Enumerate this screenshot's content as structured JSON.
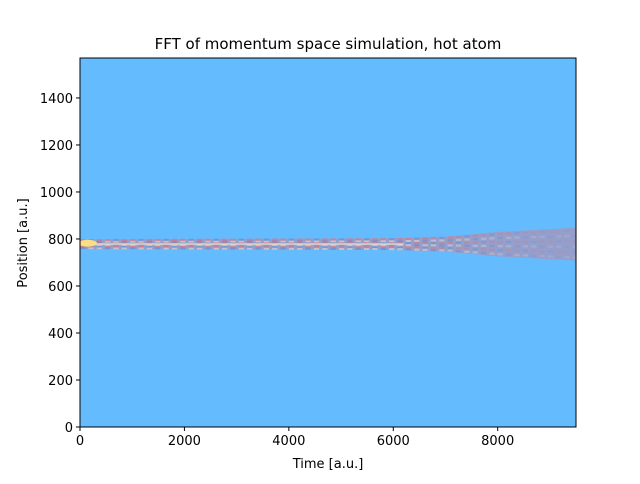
{
  "chart_data": {
    "type": "heatmap",
    "title": "FFT of momentum space simulation, hot atom",
    "xlabel": "Time [a.u.]",
    "ylabel": "Position [a.u.]",
    "xlim": [
      0,
      9500
    ],
    "ylim": [
      0,
      1570
    ],
    "xticks": [
      0,
      2000,
      4000,
      6000,
      8000
    ],
    "yticks": [
      0,
      200,
      400,
      600,
      800,
      1000,
      1200,
      1400
    ],
    "background_color": "#64bcff",
    "band": {
      "center": 778,
      "description_points": [
        {
          "t": 0,
          "center": 780,
          "half_width": 20
        },
        {
          "t": 2000,
          "center": 778,
          "half_width": 22
        },
        {
          "t": 4000,
          "center": 778,
          "half_width": 23
        },
        {
          "t": 6000,
          "center": 778,
          "half_width": 25
        },
        {
          "t": 7000,
          "center": 778,
          "half_width": 32
        },
        {
          "t": 8000,
          "center": 778,
          "half_width": 52
        },
        {
          "t": 9500,
          "center": 778,
          "half_width": 70
        }
      ]
    },
    "grid": false,
    "colors": {
      "hot_core": "#ffe080",
      "band_red": "#f06a6a",
      "band_blue": "#5a8ad8",
      "band_pale": "#e8e0d0"
    }
  }
}
